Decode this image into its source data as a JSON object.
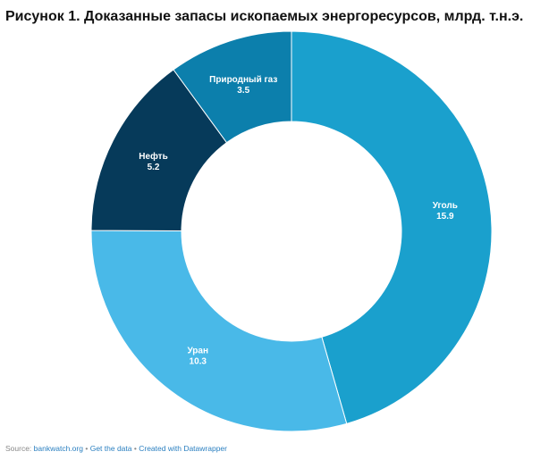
{
  "title": "Рисунок 1. Доказанные запасы ископаемых энергоресурсов, млрд. т.н.э.",
  "chart_data": {
    "type": "pie",
    "donut": true,
    "slices": [
      {
        "label": "Уголь",
        "value": 15.9,
        "color": "#1aa0cd"
      },
      {
        "label": "Уран",
        "value": 10.3,
        "color": "#49b9e8"
      },
      {
        "label": "Нефть",
        "value": 5.2,
        "color": "#063a5a"
      },
      {
        "label": "Природный газ",
        "value": 3.5,
        "color": "#0c7fac"
      }
    ]
  },
  "footer": {
    "source_prefix": "Source:",
    "source_link": "bankwatch.org",
    "separator": "•",
    "get_data": "Get the data",
    "created_with": "Created with Datawrapper"
  }
}
